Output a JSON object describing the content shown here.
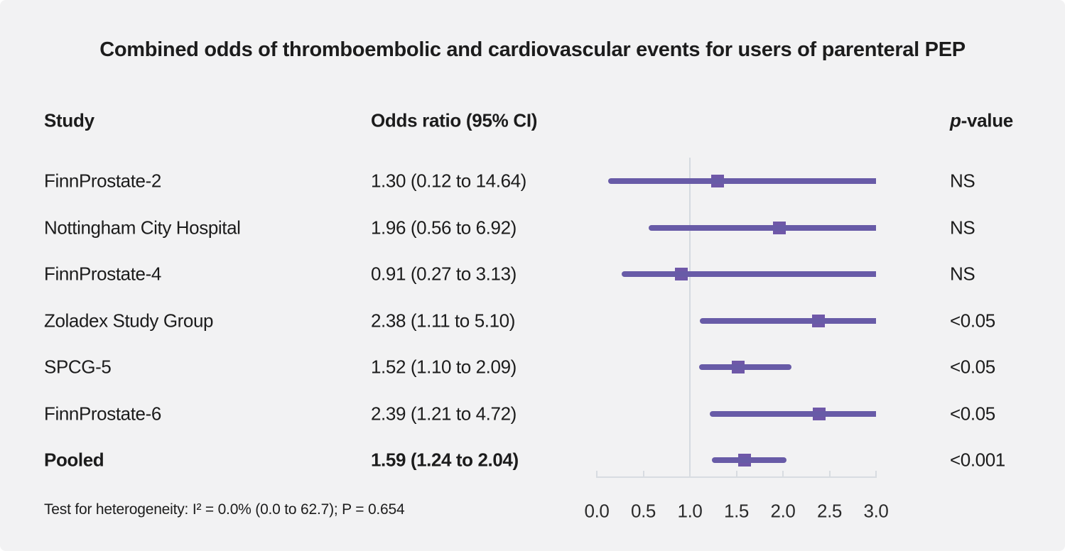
{
  "title": "Combined odds of thromboembolic and cardiovascular events for users of parenteral PEP",
  "columns": {
    "study": "Study",
    "odds_ratio": "Odds ratio (95% CI)",
    "p_italic": "p",
    "p_rest": "-value"
  },
  "footer": "Test for heterogeneity: I² = 0.0% (0.0 to 62.7); P = 0.654",
  "colors": {
    "background": "#f2f2f3",
    "text": "#1c1c1c",
    "ci_line": "#685ba7",
    "marker": "#6f58a8",
    "axis": "#d8dce1",
    "refline": "#d5dae0"
  },
  "chart_data": {
    "type": "forest",
    "title": "Combined odds of thromboembolic and cardiovascular events for users of parenteral PEP",
    "xlim": [
      0.0,
      3.0
    ],
    "reference_value": 1.0,
    "tick_values": [
      0.0,
      0.5,
      1.0,
      1.5,
      2.0,
      2.5,
      3.0
    ],
    "tick_labels": [
      "0.0",
      "0.5",
      "1.0",
      "1.5",
      "2.0",
      "2.5",
      "3.0"
    ],
    "grid": false,
    "rows": [
      {
        "study": "FinnProstate-2",
        "or_text": "1.30 (0.12 to 14.64)",
        "est": 1.3,
        "lo": 0.12,
        "hi": 14.64,
        "p": "NS",
        "bold": false
      },
      {
        "study": "Nottingham City Hospital",
        "or_text": "1.96 (0.56 to 6.92)",
        "est": 1.96,
        "lo": 0.56,
        "hi": 6.92,
        "p": "NS",
        "bold": false
      },
      {
        "study": "FinnProstate-4",
        "or_text": "0.91 (0.27 to 3.13)",
        "est": 0.91,
        "lo": 0.27,
        "hi": 3.13,
        "p": "NS",
        "bold": false
      },
      {
        "study": "Zoladex Study Group",
        "or_text": "2.38 (1.11 to 5.10)",
        "est": 2.38,
        "lo": 1.11,
        "hi": 5.1,
        "p": "<0.05",
        "bold": false
      },
      {
        "study": "SPCG-5",
        "or_text": "1.52 (1.10 to 2.09)",
        "est": 1.52,
        "lo": 1.1,
        "hi": 2.09,
        "p": "<0.05",
        "bold": false
      },
      {
        "study": "FinnProstate-6",
        "or_text": "2.39 (1.21 to 4.72)",
        "est": 2.39,
        "lo": 1.21,
        "hi": 4.72,
        "p": "<0.05",
        "bold": false
      },
      {
        "study": "Pooled",
        "or_text": "1.59 (1.24 to 2.04)",
        "est": 1.59,
        "lo": 1.24,
        "hi": 2.04,
        "p": "<0.001",
        "bold": true
      }
    ]
  }
}
